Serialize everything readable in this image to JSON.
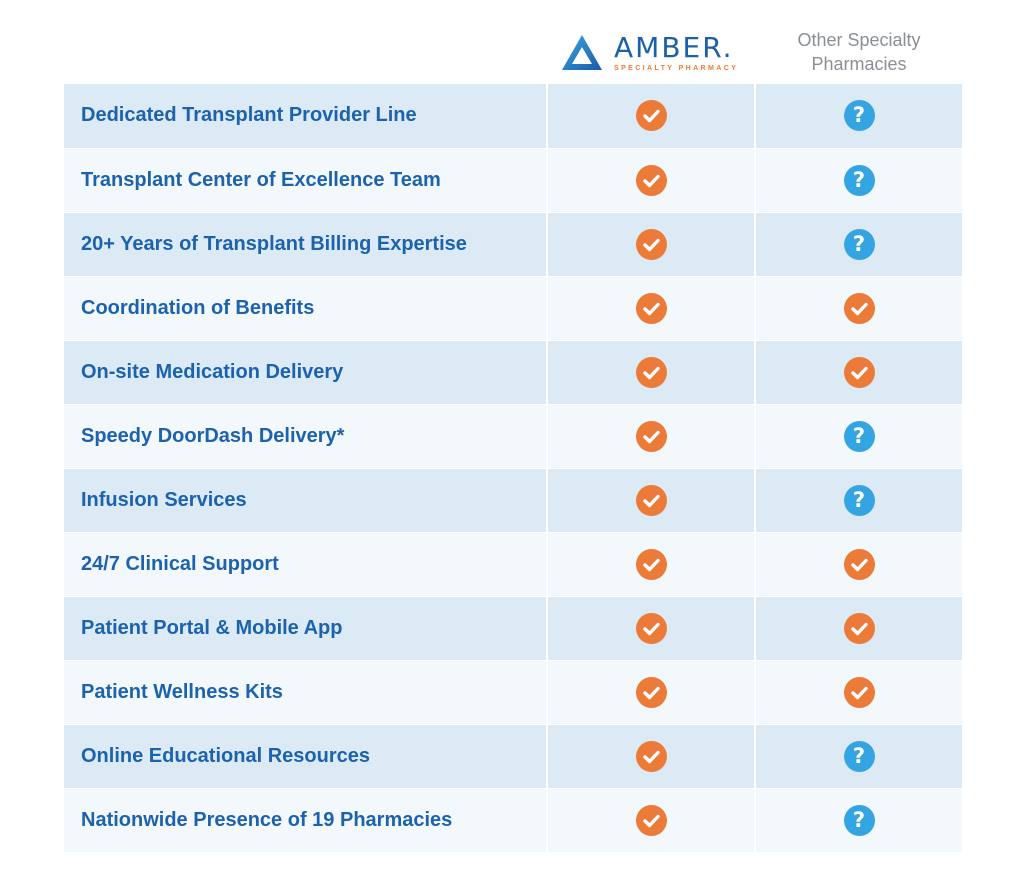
{
  "header": {
    "brand_name": "AMBER",
    "brand_mark": ".",
    "brand_tagline": "SPECIALTY PHARMACY",
    "other_line1": "Other Specialty",
    "other_line2": "Pharmacies"
  },
  "colors": {
    "check": "#ec7b3a",
    "question": "#35a4e2",
    "label_text": "#1c62ad",
    "row_dark": "#dceaf6",
    "row_light": "#f3f8fc"
  },
  "icons": {
    "check": "check-icon",
    "question": "question-icon",
    "logo": "amber-logo-triangle"
  },
  "rows": [
    {
      "label": "Dedicated Transplant Provider Line",
      "amber": "check",
      "other": "question"
    },
    {
      "label": "Transplant Center of Excellence Team",
      "amber": "check",
      "other": "question"
    },
    {
      "label": "20+ Years of Transplant Billing Expertise",
      "amber": "check",
      "other": "question"
    },
    {
      "label": "Coordination of Benefits",
      "amber": "check",
      "other": "check"
    },
    {
      "label": "On-site Medication Delivery",
      "amber": "check",
      "other": "check"
    },
    {
      "label": "Speedy DoorDash Delivery*",
      "amber": "check",
      "other": "question"
    },
    {
      "label": "Infusion Services",
      "amber": "check",
      "other": "question"
    },
    {
      "label": "24/7 Clinical Support",
      "amber": "check",
      "other": "check"
    },
    {
      "label": "Patient Portal & Mobile App",
      "amber": "check",
      "other": "check"
    },
    {
      "label": "Patient Wellness Kits",
      "amber": "check",
      "other": "check"
    },
    {
      "label": "Online Educational Resources",
      "amber": "check",
      "other": "question"
    },
    {
      "label": "Nationwide Presence of 19 Pharmacies",
      "amber": "check",
      "other": "question"
    }
  ]
}
